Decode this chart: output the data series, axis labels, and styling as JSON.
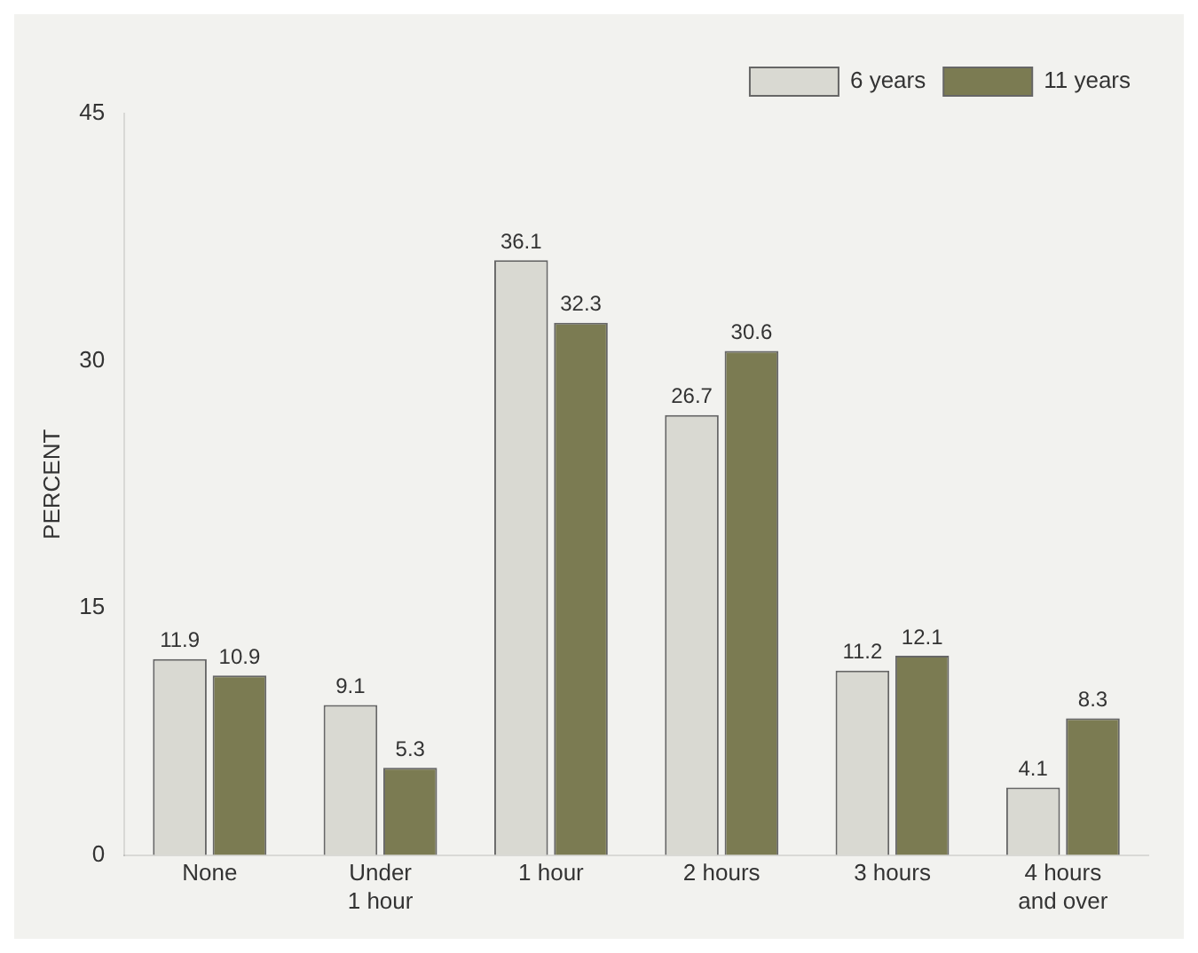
{
  "chart_data": {
    "type": "bar",
    "ylabel": "PERCENT",
    "categories": [
      "None",
      "Under\n1 hour",
      "1 hour",
      "2 hours",
      "3 hours",
      "4 hours\nand over"
    ],
    "series": [
      {
        "name": "6 years",
        "color": "#d9d9d2",
        "values": [
          11.9,
          9.1,
          36.1,
          26.7,
          11.2,
          4.1
        ]
      },
      {
        "name": "11 years",
        "color": "#7b7b52",
        "values": [
          10.9,
          5.3,
          32.3,
          30.6,
          12.1,
          8.3
        ]
      }
    ],
    "ylim": [
      0,
      45
    ],
    "yticks": [
      0,
      15,
      30,
      45
    ],
    "grid": false,
    "legend": "top right",
    "data_labels": true
  }
}
